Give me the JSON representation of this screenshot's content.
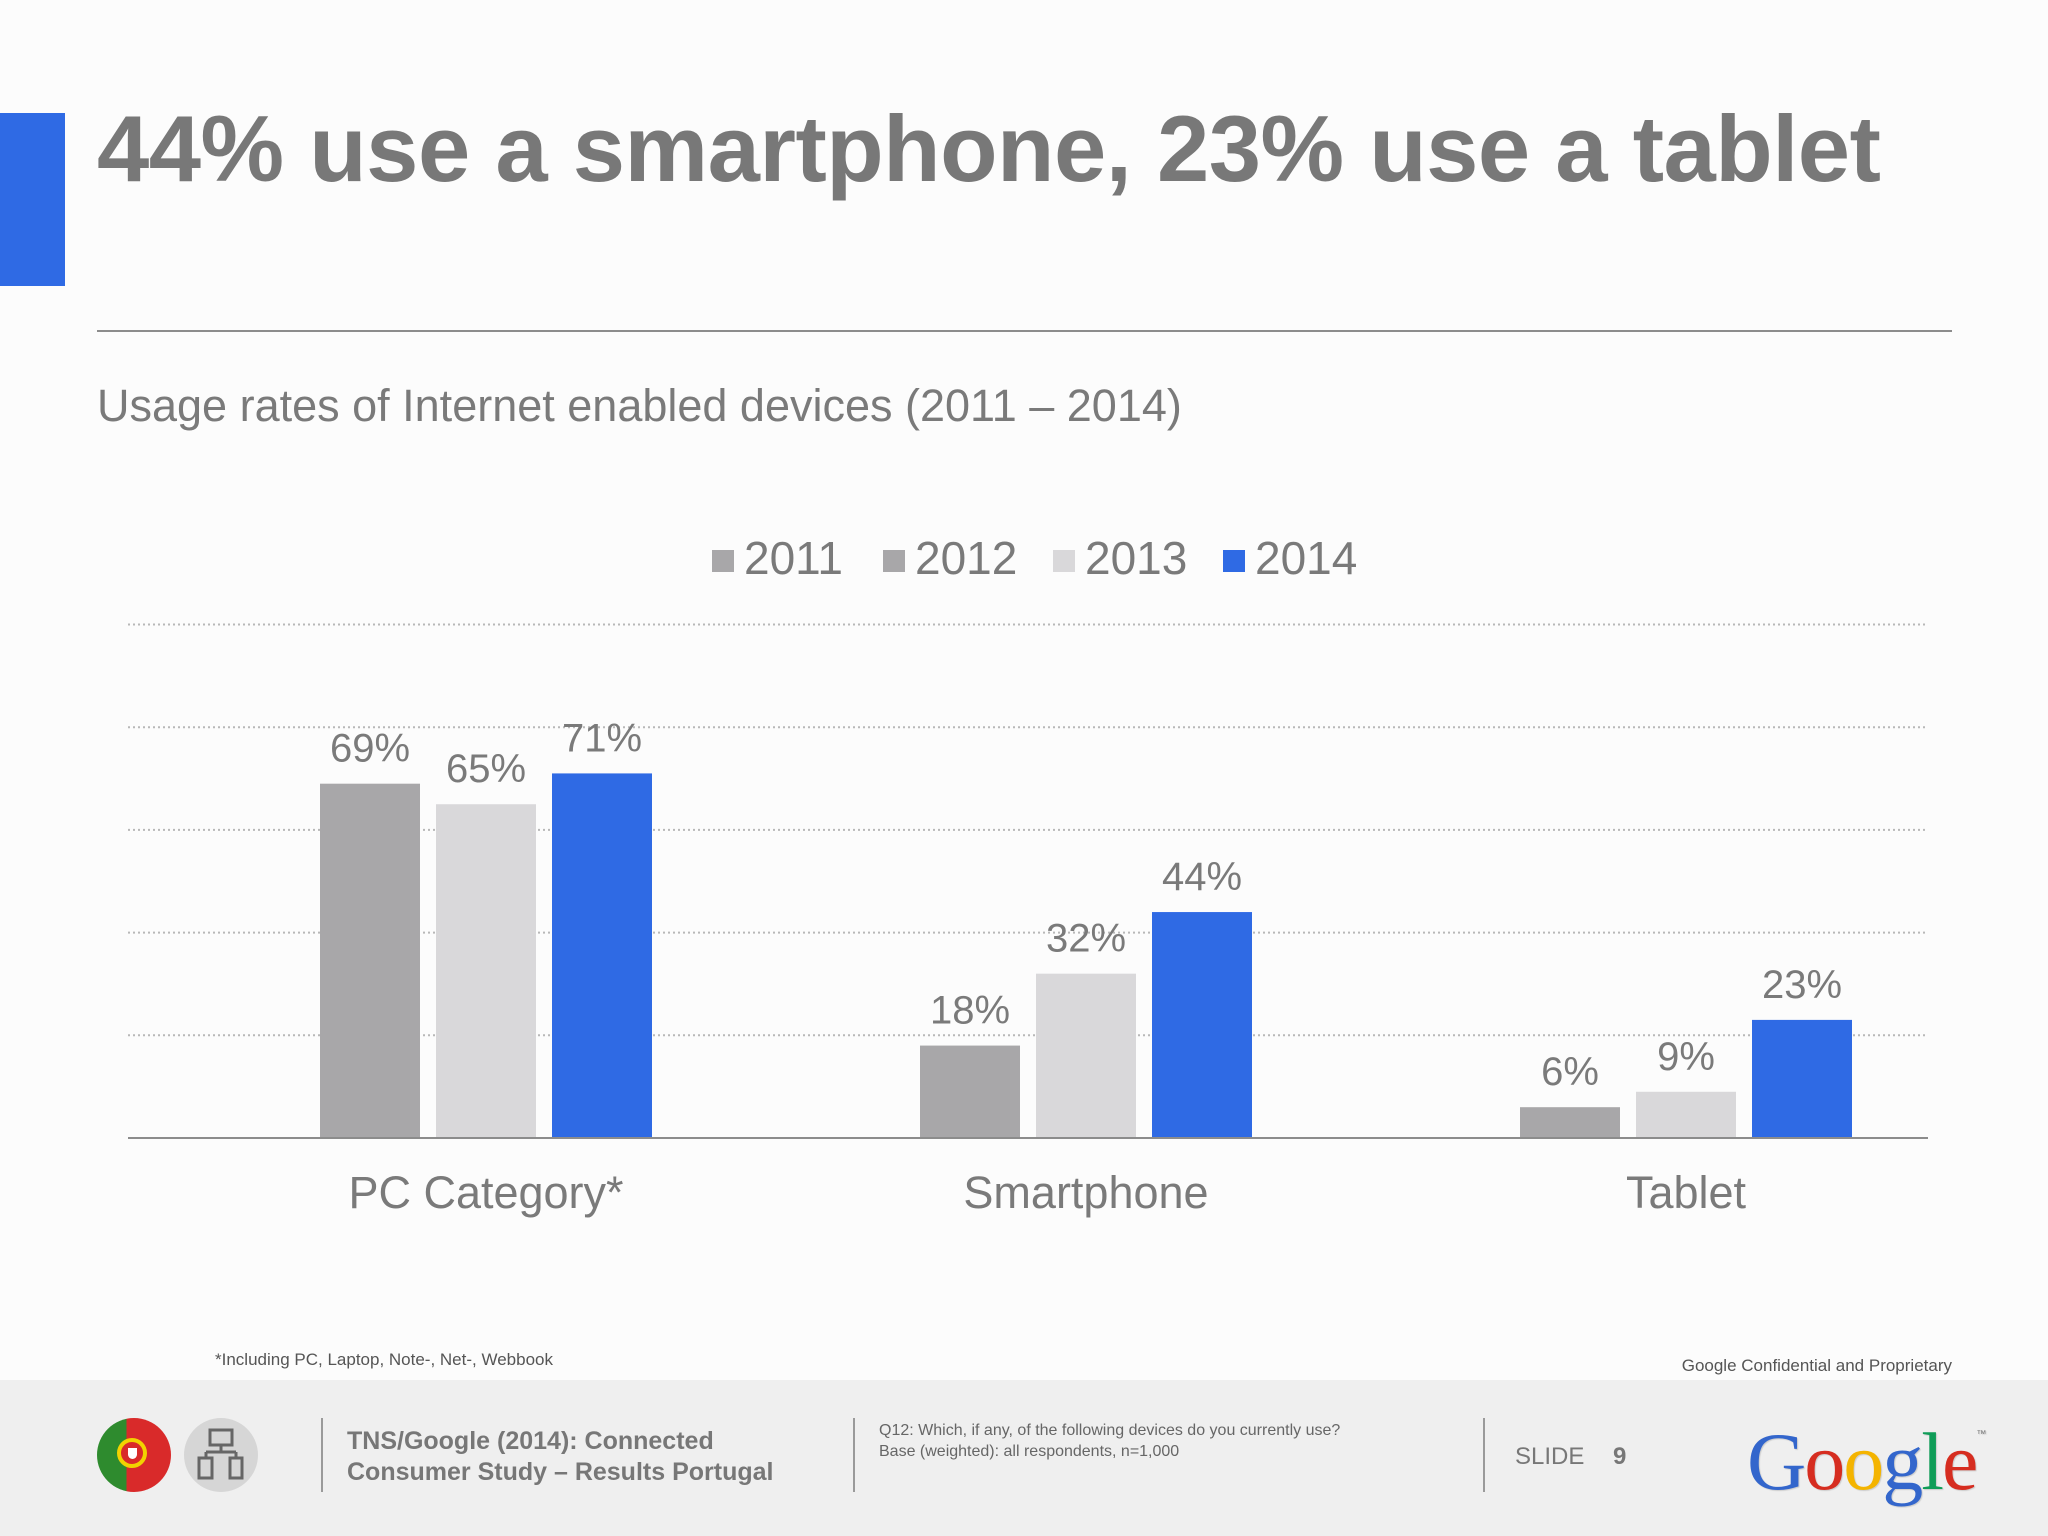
{
  "slide": {
    "title": "44% use a smartphone, 23% use a tablet",
    "subtitle": "Usage rates of Internet enabled devices (2011 – 2014)",
    "footnote": "*Including PC, Laptop, Note-, Net-, Webbook",
    "confidential": "Google Confidential and Proprietary",
    "accent_color": "#2f6ae4"
  },
  "footer": {
    "source_line1": "TNS/Google (2014): Connected",
    "source_line2": "Consumer Study – Results Portugal",
    "question_line1": "Q12: Which, if any, of the following devices do you currently use?",
    "question_line2": "Base (weighted): all respondents, n=1,000",
    "slide_label": "SLIDE",
    "slide_number": "9",
    "logo_text": "Google",
    "logo_tm": "™",
    "logo_colors": [
      "#3366cc",
      "#d62d20",
      "#f4b400",
      "#3366cc",
      "#109d58",
      "#d62d20"
    ],
    "icons": [
      "portugal-flag-icon",
      "devices-icon"
    ]
  },
  "chart_data": {
    "type": "bar",
    "categories": [
      "PC Category*",
      "Smartphone",
      "Tablet"
    ],
    "series": [
      {
        "name": "2011",
        "color": "#a8a7a9",
        "values": [
          69,
          18,
          6
        ]
      },
      {
        "name": "2012",
        "color": "#a8a7a9",
        "values": [
          null,
          null,
          null
        ]
      },
      {
        "name": "2013",
        "color": "#d9d8da",
        "values": [
          65,
          32,
          9
        ]
      },
      {
        "name": "2014",
        "color": "#2f6ae4",
        "values": [
          71,
          44,
          23
        ]
      }
    ],
    "value_suffix": "%",
    "ylim": [
      0,
      100
    ],
    "gridlines": [
      20,
      40,
      60,
      80,
      100
    ],
    "grid": true,
    "legend_position": "top-center"
  }
}
